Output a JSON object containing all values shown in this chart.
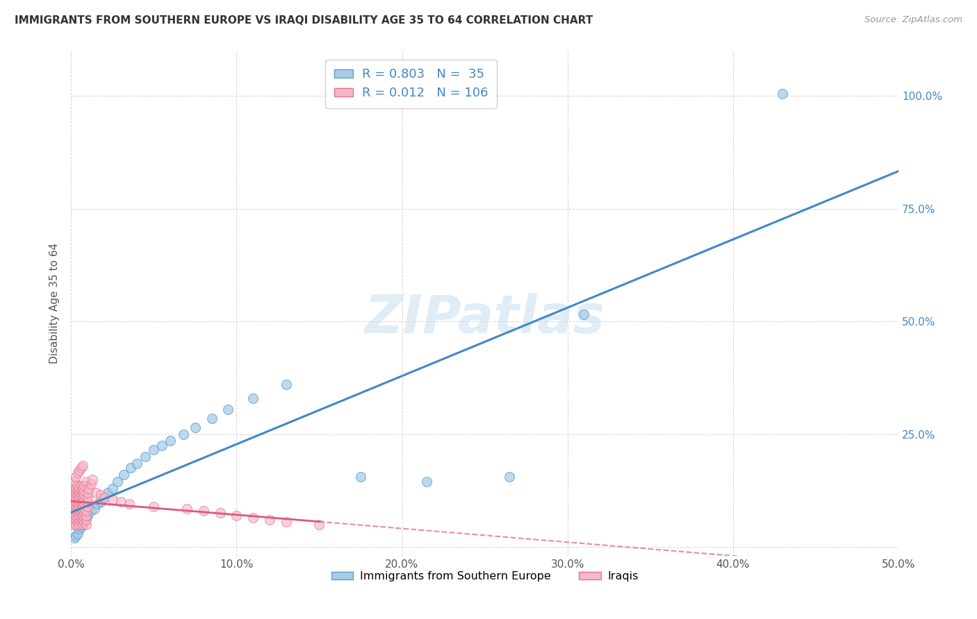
{
  "title": "IMMIGRANTS FROM SOUTHERN EUROPE VS IRAQI DISABILITY AGE 35 TO 64 CORRELATION CHART",
  "source": "Source: ZipAtlas.com",
  "ylabel": "Disability Age 35 to 64",
  "xlabel_legend1": "Immigrants from Southern Europe",
  "xlabel_legend2": "Iraqis",
  "x_ticks": [
    0.0,
    0.1,
    0.2,
    0.3,
    0.4,
    0.5
  ],
  "x_tick_labels": [
    "0.0%",
    "10.0%",
    "20.0%",
    "30.0%",
    "40.0%",
    "50.0%"
  ],
  "y_ticks": [
    0.0,
    0.25,
    0.5,
    0.75,
    1.0
  ],
  "y_tick_labels_right": [
    "",
    "25.0%",
    "50.0%",
    "75.0%",
    "100.0%"
  ],
  "xlim": [
    0.0,
    0.5
  ],
  "ylim": [
    -0.02,
    1.1
  ],
  "R_blue": 0.803,
  "N_blue": 35,
  "R_pink": 0.012,
  "N_pink": 106,
  "blue_scatter_color": "#a8cce8",
  "blue_edge_color": "#5b9dc9",
  "blue_line_color": "#4287c8",
  "pink_scatter_color": "#f5b8c8",
  "pink_edge_color": "#e87090",
  "pink_line_color": "#e05878",
  "watermark": "ZIPatlas",
  "background_color": "#ffffff",
  "grid_color": "#d0d0d0",
  "blue_scatter_x": [
    0.002,
    0.003,
    0.004,
    0.005,
    0.006,
    0.007,
    0.008,
    0.009,
    0.01,
    0.012,
    0.014,
    0.016,
    0.018,
    0.02,
    0.022,
    0.025,
    0.028,
    0.032,
    0.036,
    0.04,
    0.045,
    0.05,
    0.055,
    0.06,
    0.068,
    0.075,
    0.085,
    0.095,
    0.11,
    0.13,
    0.175,
    0.215,
    0.265,
    0.31,
    0.43
  ],
  "blue_scatter_y": [
    0.02,
    0.025,
    0.03,
    0.04,
    0.045,
    0.05,
    0.06,
    0.065,
    0.07,
    0.08,
    0.085,
    0.095,
    0.1,
    0.11,
    0.12,
    0.13,
    0.145,
    0.16,
    0.175,
    0.185,
    0.2,
    0.215,
    0.225,
    0.235,
    0.25,
    0.265,
    0.285,
    0.305,
    0.33,
    0.36,
    0.155,
    0.145,
    0.155,
    0.515,
    1.005
  ],
  "pink_scatter_x": [
    0.001,
    0.001,
    0.001,
    0.001,
    0.001,
    0.001,
    0.001,
    0.001,
    0.001,
    0.001,
    0.002,
    0.002,
    0.002,
    0.002,
    0.002,
    0.002,
    0.002,
    0.002,
    0.002,
    0.002,
    0.003,
    0.003,
    0.003,
    0.003,
    0.003,
    0.003,
    0.003,
    0.003,
    0.003,
    0.003,
    0.004,
    0.004,
    0.004,
    0.004,
    0.004,
    0.004,
    0.004,
    0.004,
    0.004,
    0.004,
    0.005,
    0.005,
    0.005,
    0.005,
    0.005,
    0.005,
    0.005,
    0.005,
    0.005,
    0.005,
    0.006,
    0.006,
    0.006,
    0.006,
    0.006,
    0.006,
    0.006,
    0.006,
    0.006,
    0.006,
    0.007,
    0.007,
    0.007,
    0.007,
    0.007,
    0.007,
    0.007,
    0.007,
    0.007,
    0.007,
    0.008,
    0.008,
    0.008,
    0.008,
    0.008,
    0.008,
    0.008,
    0.008,
    0.008,
    0.009,
    0.009,
    0.009,
    0.009,
    0.009,
    0.01,
    0.01,
    0.01,
    0.01,
    0.011,
    0.012,
    0.013,
    0.015,
    0.018,
    0.02,
    0.025,
    0.03,
    0.035,
    0.05,
    0.07,
    0.08,
    0.09,
    0.1,
    0.11,
    0.12,
    0.13,
    0.15
  ],
  "pink_scatter_y": [
    0.05,
    0.06,
    0.07,
    0.08,
    0.09,
    0.1,
    0.11,
    0.12,
    0.13,
    0.14,
    0.055,
    0.065,
    0.075,
    0.085,
    0.095,
    0.105,
    0.115,
    0.125,
    0.135,
    0.145,
    0.05,
    0.06,
    0.07,
    0.08,
    0.09,
    0.1,
    0.11,
    0.12,
    0.13,
    0.155,
    0.055,
    0.065,
    0.075,
    0.085,
    0.095,
    0.105,
    0.115,
    0.125,
    0.135,
    0.165,
    0.05,
    0.06,
    0.07,
    0.08,
    0.09,
    0.1,
    0.11,
    0.12,
    0.13,
    0.17,
    0.055,
    0.065,
    0.075,
    0.085,
    0.095,
    0.105,
    0.115,
    0.125,
    0.135,
    0.175,
    0.05,
    0.06,
    0.07,
    0.08,
    0.09,
    0.1,
    0.11,
    0.12,
    0.13,
    0.18,
    0.055,
    0.065,
    0.075,
    0.085,
    0.095,
    0.105,
    0.115,
    0.125,
    0.135,
    0.145,
    0.05,
    0.06,
    0.07,
    0.08,
    0.09,
    0.1,
    0.11,
    0.12,
    0.13,
    0.14,
    0.15,
    0.12,
    0.115,
    0.11,
    0.105,
    0.1,
    0.095,
    0.09,
    0.085,
    0.08,
    0.075,
    0.07,
    0.065,
    0.06,
    0.055,
    0.05
  ]
}
